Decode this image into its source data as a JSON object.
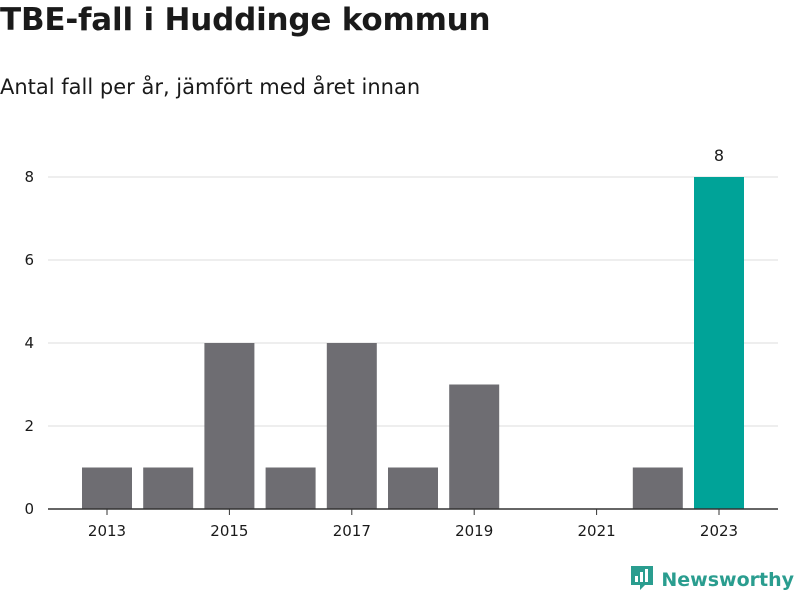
{
  "header": {
    "title": "TBE-fall i Huddinge kommun",
    "subtitle": "Antal fall per år, jämfört med året innan"
  },
  "brand": {
    "name": "Newsworthy",
    "logo_icon": "newsworthy-bar-chart-icon",
    "color": "#2a9d8f"
  },
  "colors": {
    "bar_default": "#6e6d72",
    "bar_highlight": "#00a398",
    "gridline": "#dcdcdc",
    "axis": "#333333"
  },
  "chart_data": {
    "type": "bar",
    "title": "TBE-fall i Huddinge kommun",
    "subtitle": "Antal fall per år, jämfört med året innan",
    "categories": [
      2013,
      2014,
      2015,
      2016,
      2017,
      2018,
      2019,
      2020,
      2021,
      2022,
      2023
    ],
    "values": [
      1,
      1,
      4,
      1,
      4,
      1,
      3,
      0,
      0,
      1,
      8
    ],
    "highlight_category": 2023,
    "x_tick_labels": [
      "2013",
      "2015",
      "2017",
      "2019",
      "2021",
      "2023"
    ],
    "y_ticks": [
      0,
      2,
      4,
      6,
      8
    ],
    "ylim": [
      0,
      8
    ],
    "data_labels": [
      {
        "category": 2023,
        "text": "8"
      }
    ],
    "grid": true,
    "xlabel": "",
    "ylabel": ""
  }
}
